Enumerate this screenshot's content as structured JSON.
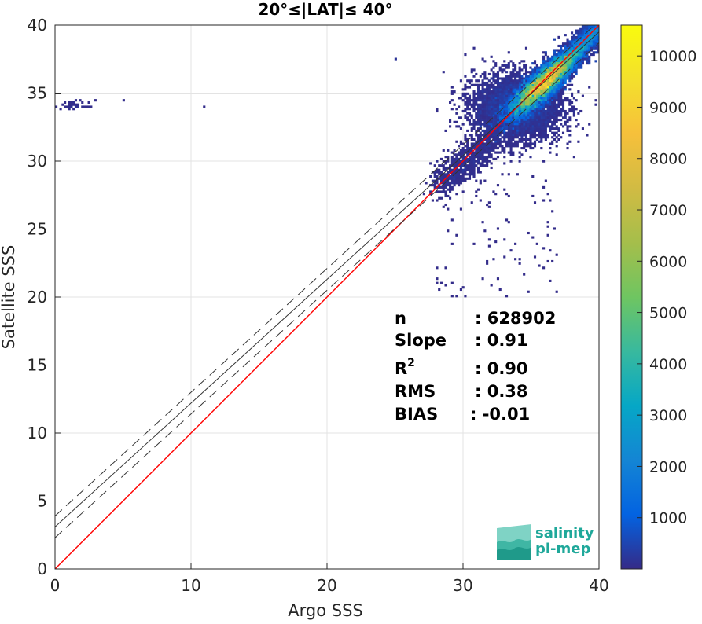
{
  "chart_data": {
    "type": "heatmap",
    "title": "20°≤|LAT|≤ 40°",
    "xlabel": "Argo SSS",
    "ylabel": "Satellite SSS",
    "xlim": [
      0,
      40
    ],
    "ylim": [
      0,
      40
    ],
    "xticks": [
      "0",
      "10",
      "20",
      "30",
      "40"
    ],
    "yticks": [
      "0",
      "5",
      "10",
      "15",
      "20",
      "25",
      "30",
      "35",
      "40"
    ],
    "grid": true,
    "colorbar": {
      "ticks": [
        "1000",
        "2000",
        "3000",
        "4000",
        "5000",
        "6000",
        "7000",
        "8000",
        "9000",
        "10000"
      ],
      "range": [
        0,
        10600
      ],
      "colormap": "parula"
    },
    "lines": [
      {
        "style": "identity",
        "color": "#ff0000",
        "points": [
          [
            0,
            0
          ],
          [
            40,
            40
          ]
        ]
      },
      {
        "style": "regression",
        "color": "#333333",
        "points": [
          [
            0,
            3.1
          ],
          [
            40,
            39.5
          ]
        ]
      },
      {
        "style": "upper-bound",
        "color": "#333333",
        "dash": true,
        "points": [
          [
            0,
            3.9
          ],
          [
            40,
            40.3
          ]
        ]
      },
      {
        "style": "lower-bound",
        "color": "#333333",
        "dash": true,
        "points": [
          [
            0,
            2.3
          ],
          [
            40,
            38.7
          ]
        ]
      }
    ],
    "cluster": {
      "center": [
        35.8,
        35.6
      ],
      "peak_count": 10600
    }
  },
  "stats": [
    {
      "label": "n",
      "value": ": 628902"
    },
    {
      "label": "Slope",
      "value": ": 0.91"
    },
    {
      "label": "R",
      "sup": "2",
      "value": ": 0.90"
    },
    {
      "label": "RMS",
      "value": ": 0.38"
    },
    {
      "label": "BIAS",
      "value": ": -0.01"
    }
  ],
  "logo": {
    "line1": "salinity",
    "line2": "pi-mep",
    "color": "#1fa89a"
  }
}
